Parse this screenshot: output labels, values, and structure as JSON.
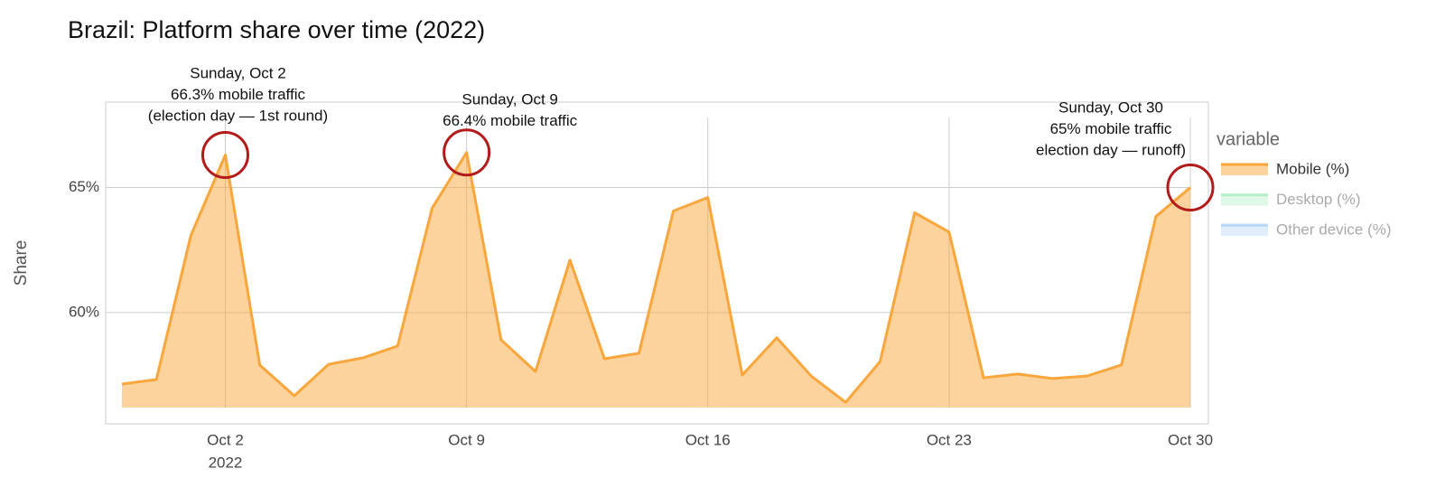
{
  "chart_data": {
    "type": "area",
    "title": "Brazil: Platform share over time (2022)",
    "y_label": "Share",
    "x": [
      "2022-09-29",
      "2022-09-30",
      "2022-10-01",
      "2022-10-02",
      "2022-10-03",
      "2022-10-04",
      "2022-10-05",
      "2022-10-06",
      "2022-10-07",
      "2022-10-08",
      "2022-10-09",
      "2022-10-10",
      "2022-10-11",
      "2022-10-12",
      "2022-10-13",
      "2022-10-14",
      "2022-10-15",
      "2022-10-16",
      "2022-10-17",
      "2022-10-18",
      "2022-10-19",
      "2022-10-20",
      "2022-10-21",
      "2022-10-22",
      "2022-10-23",
      "2022-10-24",
      "2022-10-25",
      "2022-10-26",
      "2022-10-27",
      "2022-10-28",
      "2022-10-29",
      "2022-10-30"
    ],
    "series": [
      {
        "name": "Mobile (%)",
        "color": "#f9a63c",
        "visible": true,
        "values": [
          57.14,
          57.32,
          63.08,
          66.3,
          57.9,
          56.67,
          57.93,
          58.19,
          58.66,
          64.17,
          66.4,
          58.91,
          57.64,
          62.1,
          58.15,
          58.37,
          64.06,
          64.6,
          57.5,
          58.99,
          57.46,
          56.41,
          58.04,
          63.99,
          63.22,
          57.39,
          57.54,
          57.36,
          57.46,
          57.9,
          63.84,
          65.0
        ]
      },
      {
        "name": "Desktop (%)",
        "color": "#4fd67a",
        "visible": false
      },
      {
        "name": "Other device (%)",
        "color": "#4f9cf0",
        "visible": false
      }
    ],
    "legend_title": "variable",
    "legend_position": "right",
    "xlim": [
      "2022-09-29",
      "2022-10-30"
    ],
    "xticks": [
      {
        "value": "2022-10-02",
        "label": "Oct 2",
        "sublabel": "2022"
      },
      {
        "value": "2022-10-09",
        "label": "Oct 9"
      },
      {
        "value": "2022-10-16",
        "label": "Oct 16"
      },
      {
        "value": "2022-10-23",
        "label": "Oct 23"
      },
      {
        "value": "2022-10-30",
        "label": "Oct 30"
      }
    ],
    "ylim": [
      56.2,
      67.8
    ],
    "yticks": [
      {
        "value": 60,
        "label": "60%"
      },
      {
        "value": 65,
        "label": "65%"
      }
    ],
    "grid": true,
    "annotation_color": "#b31b1b",
    "annotations": [
      {
        "x": "2022-10-02",
        "text": [
          "Sunday, Oct 2",
          "66.3% mobile traffic",
          "(election day — 1st round)"
        ]
      },
      {
        "x": "2022-10-09",
        "text": [
          "Sunday, Oct 9",
          "66.4% mobile traffic"
        ]
      },
      {
        "x": "2022-10-30",
        "text": [
          "Sunday, Oct 30",
          "65% mobile traffic",
          "election day — runoff)"
        ]
      }
    ]
  }
}
